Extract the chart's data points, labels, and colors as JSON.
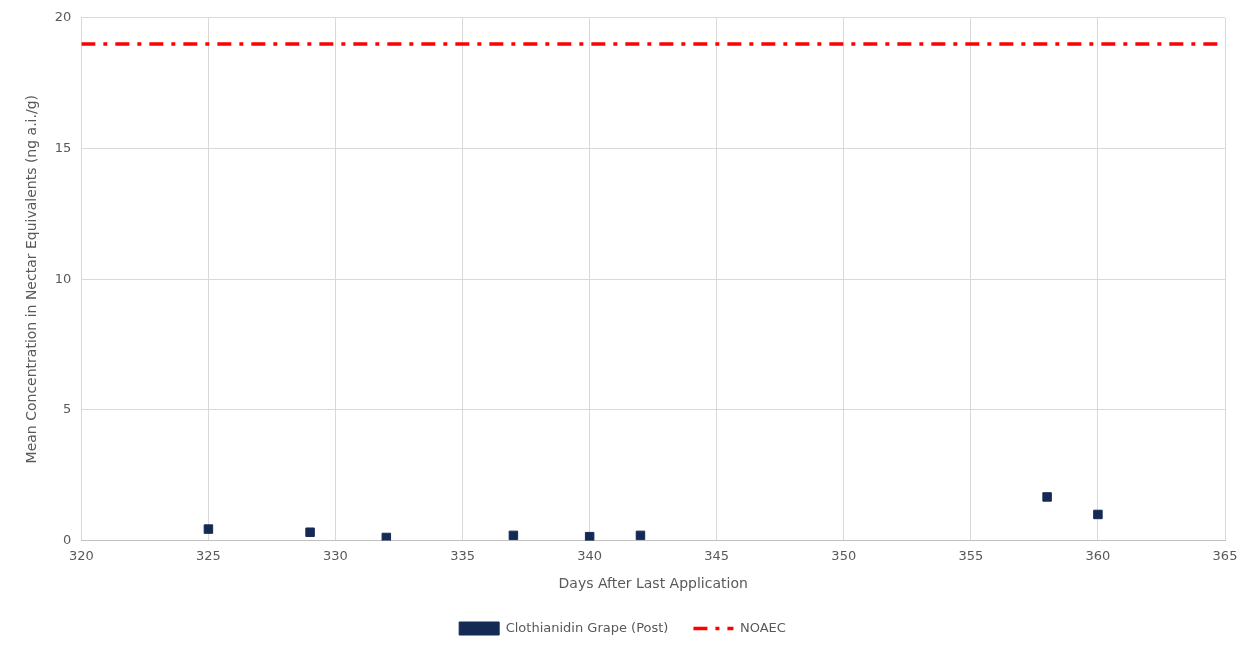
{
  "chart_data": {
    "type": "scatter",
    "xlabel": "Days After Last Application",
    "ylabel": "Mean Concentration in Nectar Equivalents (ng a.i./g)",
    "xlim": [
      320,
      365
    ],
    "xticks": [
      320,
      325,
      330,
      335,
      340,
      345,
      350,
      355,
      360,
      365
    ],
    "ylim": [
      0,
      20
    ],
    "yticks": [
      0,
      5,
      10,
      15,
      20
    ],
    "grid": true,
    "legend": "bottom",
    "marker": "square",
    "series": [
      {
        "name": "Clothianidin Grape (Post)",
        "color": "#142a55",
        "x": [
          325,
          329,
          332,
          337,
          340,
          342,
          358,
          360
        ],
        "values": [
          0.44,
          0.32,
          0.12,
          0.2,
          0.15,
          0.2,
          1.67,
          1.0
        ]
      },
      {
        "name": "NOAEC",
        "type": "line",
        "color": "#ff0000",
        "line_style": "dashed",
        "marker": "none",
        "x": [
          320,
          365
        ],
        "values": [
          19,
          19
        ]
      }
    ]
  }
}
